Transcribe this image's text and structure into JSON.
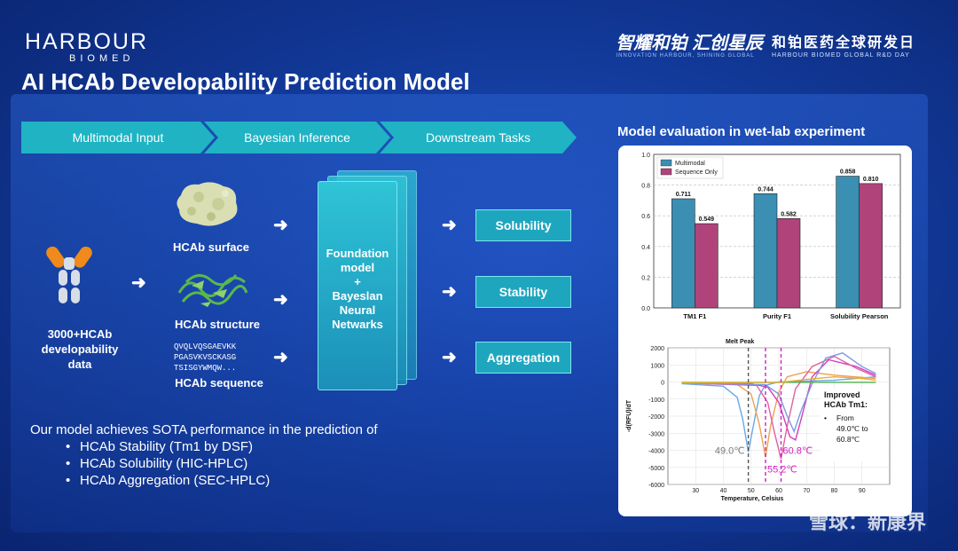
{
  "header": {
    "logo_main": "HARBOUR",
    "logo_sub": "BIOMED",
    "event_brand": "智耀和铂 汇创星辰",
    "event_brand_sub": "INNOVATION HARBOUR, SHINING GLOBAL",
    "event_title": "和铂医药全球研发日",
    "event_title_sub": "HARBOUR BIOMED GLOBAL R&D DAY"
  },
  "title": "AI HCAb Developability Prediction Model",
  "pipeline": {
    "steps": [
      "Multimodal Input",
      "Bayesian Inference",
      "Downstream Tasks"
    ],
    "input_data_label": "3000+HCAb developability data",
    "modalities": [
      "HCAb surface",
      "HCAb structure",
      "HCAb sequence"
    ],
    "sequence_lines": [
      "QVQLVQSGAEVKK",
      "PGASVKVSCKASG",
      "TSISGYWMQW..."
    ],
    "foundation_label_1": "Foundation model",
    "foundation_plus": "+",
    "foundation_label_2": "Bayeslan Neural Netwarks",
    "tasks": [
      "Solubility",
      "Stability",
      "Aggregation"
    ]
  },
  "summary": {
    "lead": "Our model achieves SOTA performance in the prediction of",
    "items": [
      "HCAb Stability (Tm1 by DSF)",
      "HCAb Solubility (HIC-HPLC)",
      "HCAb Aggregation (SEC-HPLC)"
    ]
  },
  "evaluation": {
    "title": "Model evaluation in wet-lab experiment"
  },
  "watermark": "雪球：新康界",
  "colors": {
    "multimodal": "#3a8fb3",
    "sequence_only": "#b0437a",
    "chevron": "#1fb3c4",
    "background": "#123a9a"
  },
  "chart_data": [
    {
      "type": "bar",
      "categories": [
        "TM1 F1",
        "Purity F1",
        "Solubility Pearson"
      ],
      "series": [
        {
          "name": "Multimodal",
          "values": [
            0.711,
            0.744,
            0.858
          ]
        },
        {
          "name": "Sequence Only",
          "values": [
            0.549,
            0.582,
            0.81
          ]
        }
      ],
      "value_labels": [
        [
          "0.711",
          "0.744",
          "0.858"
        ],
        [
          "0.549",
          "0.582",
          "0.810"
        ]
      ],
      "ylim": [
        0,
        1.0
      ],
      "yticks": [
        "0.0",
        "0.2",
        "0.4",
        "0.6",
        "0.8",
        "1.0"
      ],
      "grid": true,
      "legend": "top-left"
    },
    {
      "type": "line",
      "title": "Melt Peak",
      "xlabel": "Temperature, Celsius",
      "ylabel": "-d(RFU)/dT",
      "xlim": [
        20,
        100
      ],
      "ylim": [
        -6000,
        2000
      ],
      "xticks": [
        "30",
        "40",
        "50",
        "60",
        "70",
        "80",
        "90"
      ],
      "yticks": [
        "2000",
        "1000",
        "0",
        "-1000",
        "-2000",
        "-3000",
        "-4000",
        "-5000",
        "-6000"
      ],
      "markers": [
        {
          "x": 49.0,
          "label": "49.0℃"
        },
        {
          "x": 55.2,
          "label": "55.2℃"
        },
        {
          "x": 60.8,
          "label": "60.8℃"
        }
      ],
      "series": [
        {
          "color": "#6aa8e8",
          "x": [
            25,
            40,
            45,
            47,
            49,
            51,
            53,
            55,
            60,
            70,
            80,
            95
          ],
          "y": [
            -100,
            -250,
            -900,
            -2200,
            -4100,
            -2400,
            -800,
            -200,
            0,
            50,
            100,
            300
          ]
        },
        {
          "color": "#f0a050",
          "x": [
            25,
            45,
            50,
            53,
            55.2,
            57,
            60,
            63,
            70,
            80,
            95
          ],
          "y": [
            -80,
            -150,
            -700,
            -2500,
            -4400,
            -2600,
            -600,
            300,
            600,
            400,
            200
          ]
        },
        {
          "color": "#d040c0",
          "x": [
            25,
            50,
            56,
            60,
            62,
            64,
            66,
            68,
            72,
            78,
            88,
            95
          ],
          "y": [
            -60,
            -100,
            -300,
            -1200,
            -2200,
            -3200,
            -3400,
            -2200,
            300,
            1300,
            900,
            400
          ]
        },
        {
          "color": "#e060a0",
          "x": [
            25,
            52,
            56,
            58.5,
            60.8,
            63,
            66,
            72,
            80,
            88,
            95
          ],
          "y": [
            -50,
            -200,
            -1200,
            -3000,
            -4500,
            -2600,
            -400,
            900,
            1500,
            800,
            300
          ]
        },
        {
          "color": "#7a9ae0",
          "x": [
            25,
            55,
            60,
            63,
            65.5,
            68,
            72,
            77,
            83,
            90,
            95
          ],
          "y": [
            -60,
            -150,
            -700,
            -2000,
            -2900,
            -1700,
            -100,
            1400,
            1700,
            900,
            500
          ]
        },
        {
          "color": "#50b050",
          "x": [
            25,
            95
          ],
          "y": [
            -20,
            -20
          ]
        },
        {
          "color": "#e8b030",
          "x": [
            25,
            60,
            70,
            80,
            90,
            95
          ],
          "y": [
            -40,
            -30,
            150,
            300,
            200,
            100
          ]
        }
      ],
      "annotation": {
        "title": "Improved HCAb Tm1:",
        "bullet": "From 49.0℃ to 60.8℃"
      }
    }
  ]
}
